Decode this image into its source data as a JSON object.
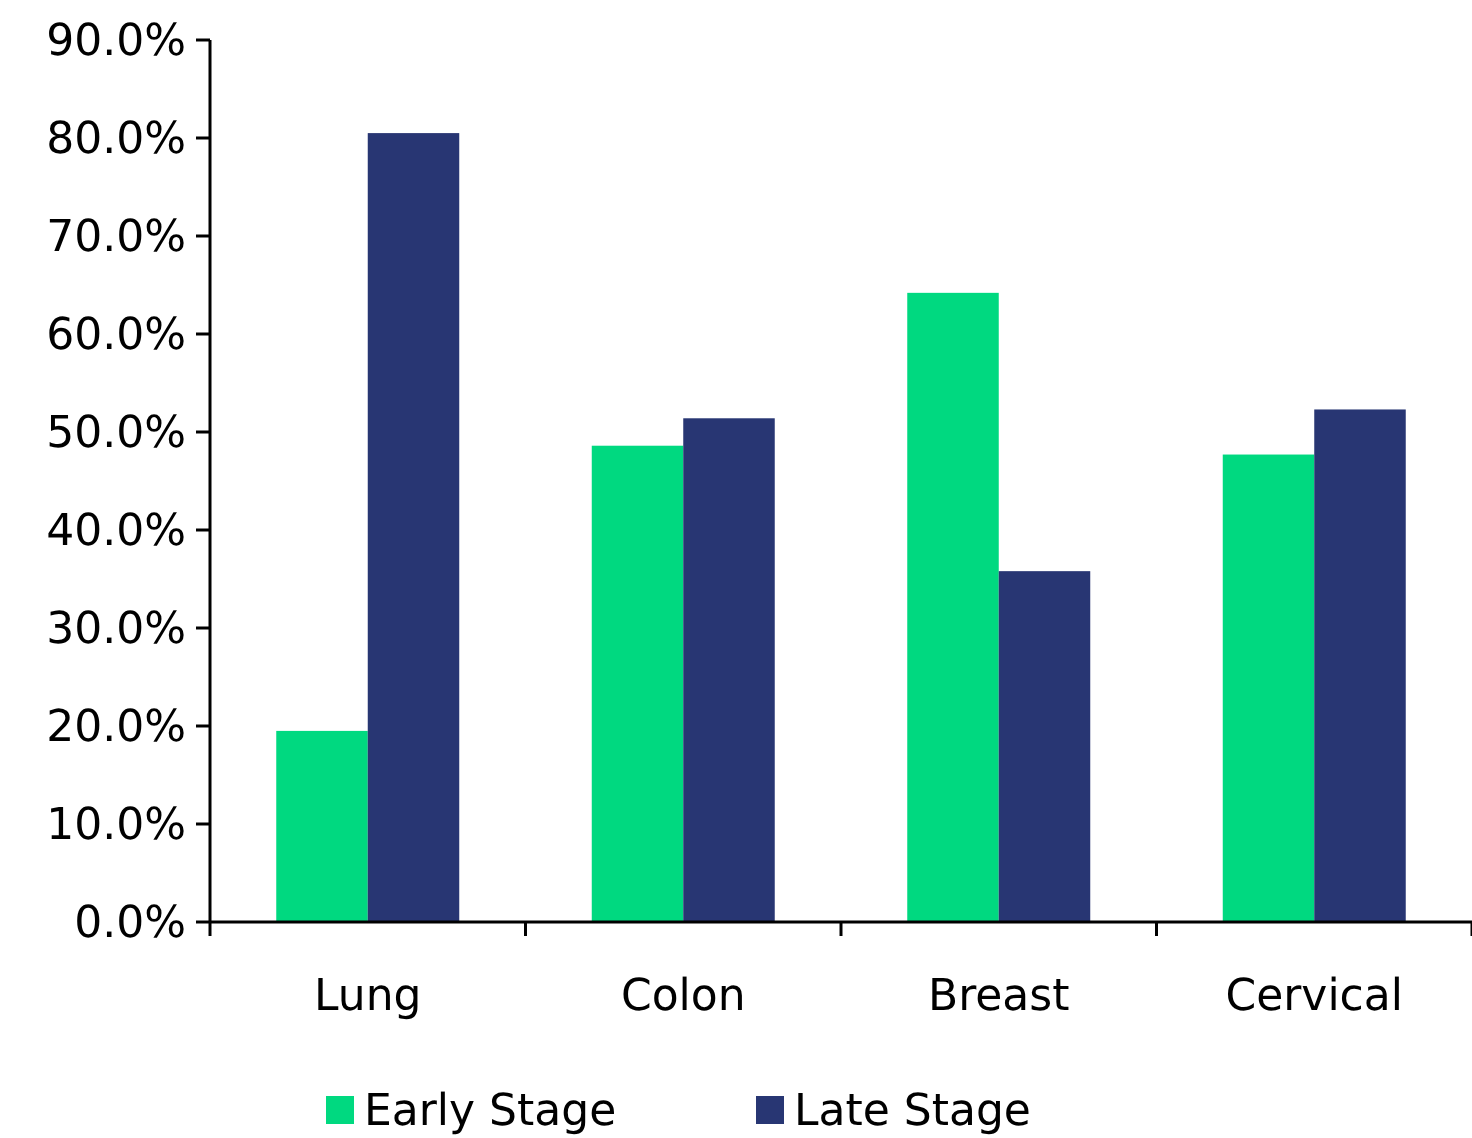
{
  "chart_data": {
    "type": "bar",
    "categories": [
      "Lung",
      "Colon",
      "Breast",
      "Cervical"
    ],
    "series": [
      {
        "name": "Early Stage",
        "color": "#00d980",
        "values": [
          19.5,
          48.6,
          64.2,
          47.7
        ]
      },
      {
        "name": "Late Stage",
        "color": "#283673",
        "values": [
          80.5,
          51.4,
          35.8,
          52.3
        ]
      }
    ],
    "ylim": [
      0,
      90
    ],
    "yticks": [
      {
        "value": 0,
        "label": "0.0%"
      },
      {
        "value": 10,
        "label": "10.0%"
      },
      {
        "value": 20,
        "label": "20.0%"
      },
      {
        "value": 30,
        "label": "30.0%"
      },
      {
        "value": 40,
        "label": "40.0%"
      },
      {
        "value": 50,
        "label": "50.0%"
      },
      {
        "value": 60,
        "label": "60.0%"
      },
      {
        "value": 70,
        "label": "70.0%"
      },
      {
        "value": 80,
        "label": "80.0%"
      },
      {
        "value": 90,
        "label": "90.0%"
      }
    ],
    "grid": false,
    "legend": "bottom"
  }
}
